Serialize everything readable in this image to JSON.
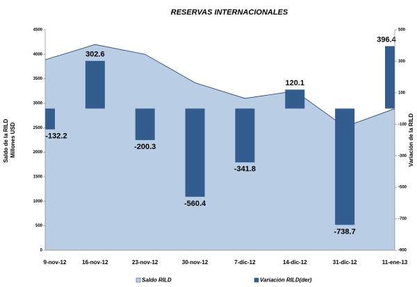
{
  "chart_data": {
    "type": "combo",
    "title": "RESERVAS INTERNACIONALES",
    "y_label": [
      "Saldo de la RILD",
      "Millones USD"
    ],
    "y2_label": "Variación de la RILD",
    "categories": [
      "9-nov-12",
      "16-nov-12",
      "23-nov-12",
      "30-nov-12",
      "7-dic-12",
      "14-dic-12",
      "31-dic-12",
      "11-ene-13"
    ],
    "series": [
      {
        "name": "Saldo RILD",
        "type": "area",
        "color": "#b9cde5",
        "line_color": "#1f3a63",
        "values": [
          3890,
          4200,
          4000,
          3420,
          3100,
          3250,
          2520,
          2890
        ]
      },
      {
        "name": "Variación RILD(der)",
        "type": "bar",
        "axis": "y2",
        "color": "#335c8f",
        "values": [
          -132.2,
          302.6,
          -200.3,
          -560.4,
          -341.8,
          120.1,
          -738.7,
          396.4
        ]
      }
    ],
    "ylim": [
      0,
      4500
    ],
    "yticks": [
      0,
      500,
      1000,
      1500,
      2000,
      2500,
      3000,
      3500,
      4000,
      4500
    ],
    "y2lim": [
      -900,
      500
    ],
    "y2ticks": [
      -900,
      -700,
      -500,
      -300,
      -100,
      100,
      300,
      500
    ]
  }
}
